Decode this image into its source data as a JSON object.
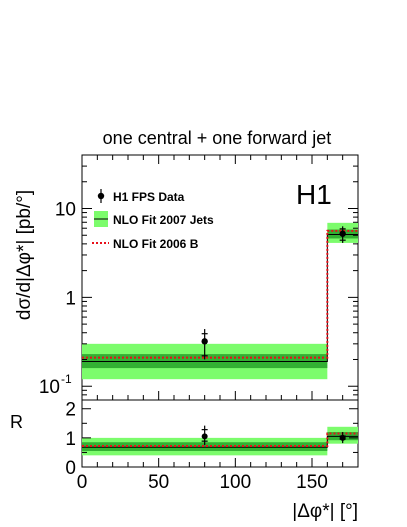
{
  "chart_data": {
    "type": "step",
    "title": "one central + one forward jet",
    "experiment_label": "H1",
    "xlabel": "|Δφ*| [°]",
    "ylabel": "dσ/d|Δφ*| [pb/°]",
    "ratio_ylabel": "R",
    "xlim": [
      0,
      180
    ],
    "ylim": [
      0.07,
      40
    ],
    "yscale": "log",
    "ratio_ylim": [
      0,
      2.3
    ],
    "x_ticks": [
      "0",
      "50",
      "100",
      "150"
    ],
    "y_ticks": [
      "10^-1",
      "1",
      "10"
    ],
    "ratio_ticks": [
      "0",
      "1",
      "2"
    ],
    "bins": [
      {
        "x_low": 0,
        "x_high": 160
      },
      {
        "x_low": 160,
        "x_high": 180
      }
    ],
    "series": [
      {
        "name": "H1 FPS Data",
        "x": [
          80,
          170
        ],
        "y": [
          0.32,
          5.2
        ],
        "err_stat_low": [
          0.22,
          4.4
        ],
        "err_stat_high": [
          0.39,
          5.9
        ],
        "err_tot_low": [
          0.2,
          4.1
        ],
        "err_tot_high": [
          0.44,
          6.3
        ],
        "ratio": [
          1.05,
          1.0
        ],
        "ratio_err_low": [
          0.75,
          0.82
        ],
        "ratio_err_high": [
          1.42,
          1.2
        ]
      },
      {
        "name": "NLO Fit 2007 Jets",
        "central": [
          0.19,
          5.1
        ],
        "band_inner": [
          [
            0.16,
            0.23
          ],
          [
            4.6,
            5.8
          ]
        ],
        "band_outer": [
          [
            0.12,
            0.3
          ],
          [
            4.1,
            6.9
          ]
        ],
        "ratio_central": [
          0.68,
          1.05
        ],
        "ratio_inner": [
          [
            0.55,
            0.85
          ],
          [
            0.92,
            1.2
          ]
        ],
        "ratio_outer": [
          [
            0.4,
            1.0
          ],
          [
            0.8,
            1.38
          ]
        ]
      },
      {
        "name": "NLO Fit 2006 B",
        "central": [
          0.21,
          5.6
        ],
        "ratio_central": [
          0.72,
          1.15
        ]
      }
    ],
    "legend_position": "top-left",
    "colors": {
      "band_outer": "#7cfc6c",
      "band_inner": "#33b033",
      "fit_2006": "#e8101a",
      "data": "#000000"
    }
  }
}
